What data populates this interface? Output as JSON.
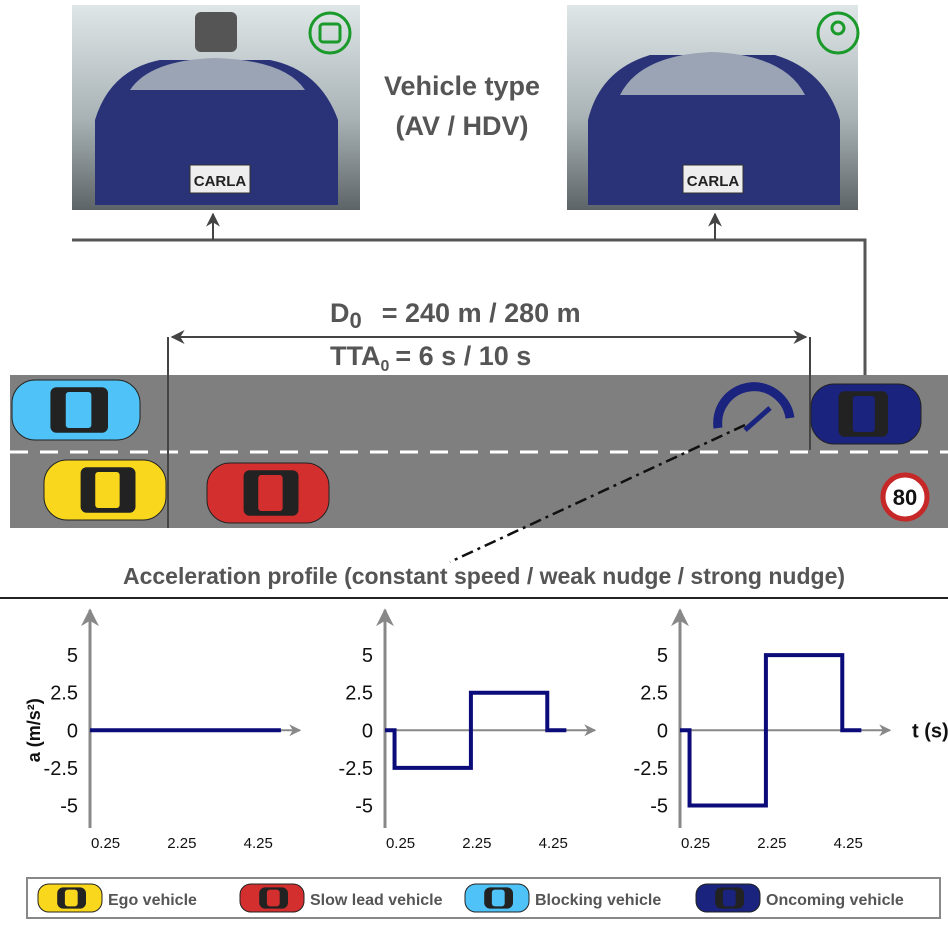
{
  "vehicle_type": {
    "line1": "Vehicle type",
    "line2": "(AV / HDV)",
    "plates": [
      "CARLA",
      "CARLA"
    ]
  },
  "distance": {
    "symbol": "D",
    "subscript": "0",
    "text": "= 240 m / 280 m"
  },
  "time_to_arrival": {
    "symbol": "TTA",
    "subscript": "0",
    "text": "= 6 s / 10 s"
  },
  "speed_limit": "80",
  "profile_title": "Acceleration profile (constant speed / weak nudge / strong nudge)",
  "legend": [
    "Ego vehicle",
    "Slow lead vehicle",
    "Blocking vehicle",
    "Oncoming vehicle"
  ],
  "chart_data": [
    {
      "type": "line",
      "y_label": "a (m/s²)",
      "xlim": [
        0,
        5.5
      ],
      "ylim": [
        -6.5,
        8
      ],
      "xticks": [
        0.25,
        2.25,
        4.25
      ],
      "yticks": [
        5,
        2.5,
        0,
        -2.5,
        -5
      ],
      "series": [
        {
          "color": "#0b0b7a",
          "x": [
            0,
            5
          ],
          "values": [
            0,
            0
          ]
        }
      ]
    },
    {
      "type": "line",
      "xlim": [
        0,
        5.5
      ],
      "ylim": [
        -6.5,
        8
      ],
      "xticks": [
        0.25,
        2.25,
        4.25
      ],
      "yticks": [
        5,
        2.5,
        0,
        -2.5,
        -5
      ],
      "series": [
        {
          "color": "#0b0b7a",
          "x": [
            0,
            0.25,
            0.25,
            2.25,
            2.25,
            4.25,
            4.25,
            4.75
          ],
          "values": [
            0,
            0,
            -2.5,
            -2.5,
            2.5,
            2.5,
            0,
            0
          ]
        }
      ]
    },
    {
      "type": "line",
      "x_label": "t (s)",
      "xlim": [
        0,
        5.5
      ],
      "ylim": [
        -6.5,
        8
      ],
      "xticks": [
        0.25,
        2.25,
        4.25
      ],
      "yticks": [
        5,
        2.5,
        0,
        -2.5,
        -5
      ],
      "series": [
        {
          "color": "#0b0b7a",
          "x": [
            0,
            0.25,
            0.25,
            2.25,
            2.25,
            4.25,
            4.25,
            4.75
          ],
          "values": [
            0,
            0,
            -5,
            -5,
            5,
            5,
            0,
            0
          ]
        }
      ]
    }
  ]
}
